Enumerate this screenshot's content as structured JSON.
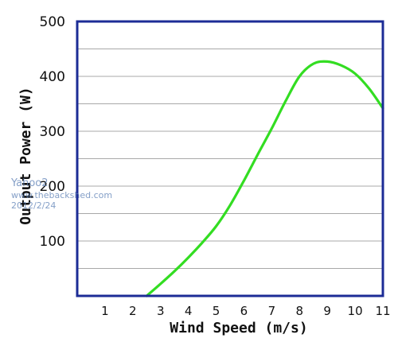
{
  "chart_data": {
    "type": "line",
    "xlabel": "Wind Speed (m/s)",
    "ylabel": "Output Power (W)",
    "xlim": [
      0,
      11
    ],
    "ylim": [
      0,
      500
    ],
    "xticks": [
      1,
      2,
      3,
      4,
      5,
      6,
      7,
      8,
      9,
      10,
      11
    ],
    "yticks_labeled": [
      100,
      200,
      300,
      400,
      500
    ],
    "ygrid_step": 50,
    "grid": "horizontal",
    "series": [
      {
        "color": "#33dd22",
        "x": [
          2.5,
          3,
          3.5,
          4,
          4.5,
          5,
          5.5,
          6,
          6.5,
          7,
          7.5,
          8,
          8.5,
          9,
          9.5,
          10,
          10.5,
          11
        ],
        "y": [
          0,
          22,
          45,
          70,
          97,
          127,
          165,
          210,
          258,
          305,
          355,
          400,
          423,
          427,
          420,
          405,
          378,
          342
        ]
      }
    ]
  },
  "watermark": {
    "lines": [
      "Yahoo2",
      "www.thebackshed.com",
      "2012/2/24"
    ]
  },
  "colors": {
    "axis_frame": "#1c2c96",
    "grid": "#a8a8a8",
    "line": "#33dd22"
  }
}
